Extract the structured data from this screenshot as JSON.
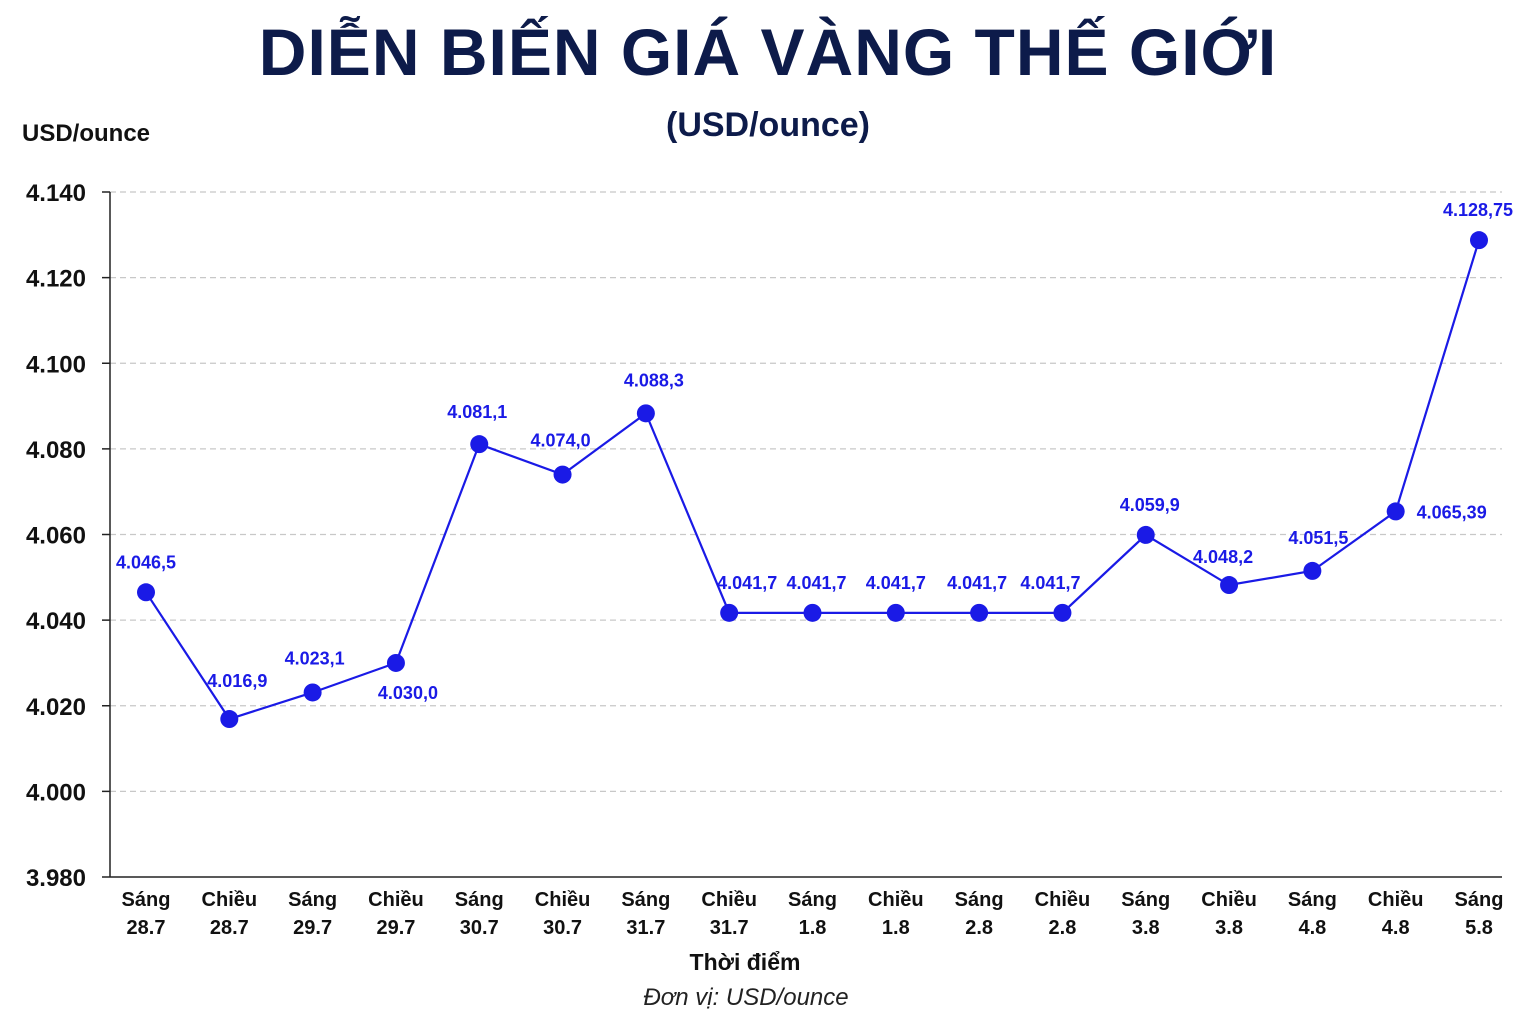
{
  "header": {
    "title": "DIỄN BIẾN GIÁ VÀNG THẾ GIỚI",
    "subtitle": "(USD/ounce)",
    "y_unit": "USD/ounce",
    "footnote": "Đơn vị: USD/ounce"
  },
  "chart_data": {
    "type": "line",
    "title": "DIỄN BIẾN GIÁ VÀNG THẾ GIỚI",
    "subtitle": "(USD/ounce)",
    "xlabel": "Thời điểm",
    "ylabel": "USD/ounce",
    "ylim": [
      3980,
      4140
    ],
    "yticks": [
      3980,
      4000,
      4020,
      4040,
      4060,
      4080,
      4100,
      4120,
      4140
    ],
    "ytick_labels": [
      "3.980",
      "4.000",
      "4.020",
      "4.040",
      "4.060",
      "4.080",
      "4.100",
      "4.120",
      "4.140"
    ],
    "grid": true,
    "color": "#1a1ae6",
    "categories": [
      [
        "Sáng",
        "28.7"
      ],
      [
        "Chiều",
        "28.7"
      ],
      [
        "Sáng",
        "29.7"
      ],
      [
        "Chiều",
        "29.7"
      ],
      [
        "Sáng",
        "30.7"
      ],
      [
        "Chiều",
        "30.7"
      ],
      [
        "Sáng",
        "31.7"
      ],
      [
        "Chiều",
        "31.7"
      ],
      [
        "Sáng",
        "1.8"
      ],
      [
        "Chiều",
        "1.8"
      ],
      [
        "Sáng",
        "2.8"
      ],
      [
        "Chiều",
        "2.8"
      ],
      [
        "Sáng",
        "3.8"
      ],
      [
        "Chiều",
        "3.8"
      ],
      [
        "Sáng",
        "4.8"
      ],
      [
        "Chiều",
        "4.8"
      ],
      [
        "Sáng",
        "5.8"
      ]
    ],
    "values": [
      4046.5,
      4016.9,
      4023.1,
      4030.0,
      4081.1,
      4074.0,
      4088.3,
      4041.7,
      4041.7,
      4041.7,
      4041.7,
      4041.7,
      4059.9,
      4048.2,
      4051.5,
      4065.39,
      4128.75
    ],
    "value_labels": [
      "4.046,5",
      "4.016,9",
      "4.023,1",
      "4.030,0",
      "4.081,1",
      "4.074,0",
      "4.088,3",
      "4.041,7",
      "4.041,7",
      "4.041,7",
      "4.041,7",
      "4.041,7",
      "4.059,9",
      "4.048,2",
      "4.051,5",
      "4.065,39",
      "4.128,75"
    ]
  }
}
